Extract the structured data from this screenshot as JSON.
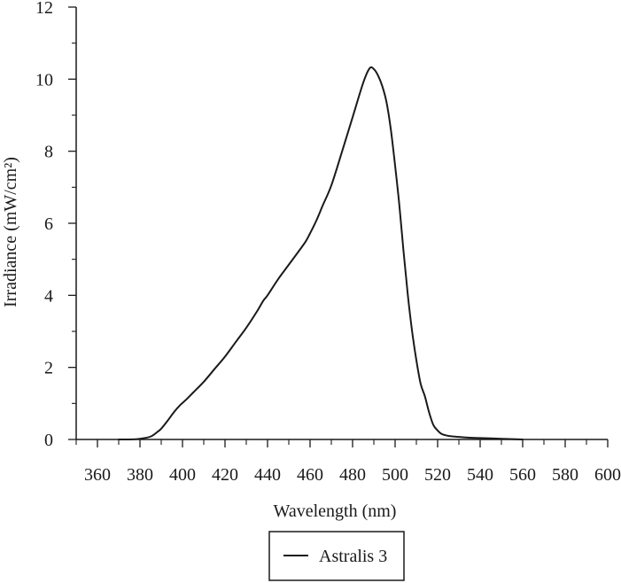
{
  "chart_data": {
    "type": "line",
    "xlabel": "Wavelength (nm)",
    "ylabel": "Irradiance (mW/cm²)",
    "xlim": [
      350,
      600
    ],
    "ylim": [
      0,
      12
    ],
    "xticks": [
      360,
      380,
      400,
      420,
      440,
      460,
      480,
      500,
      520,
      540,
      560,
      580,
      600
    ],
    "yticks": [
      0,
      2,
      4,
      6,
      8,
      10,
      12
    ],
    "grid": false,
    "legend_position": "bottom-center",
    "series": [
      {
        "name": "Astralis 3",
        "color": "#1a1a1a",
        "x": [
          370,
          375,
          380,
          385,
          388,
          390,
          393,
          396,
          399,
          402,
          405,
          410,
          415,
          420,
          425,
          430,
          435,
          438,
          440,
          445,
          450,
          455,
          458,
          460,
          463,
          466,
          470,
          475,
          480,
          485,
          488,
          490,
          492,
          494,
          496,
          498,
          500,
          502,
          504,
          506,
          508,
          510,
          512,
          514,
          516,
          518,
          520,
          522,
          525,
          530,
          535,
          540,
          550,
          560
        ],
        "y": [
          0,
          0,
          0.02,
          0.08,
          0.2,
          0.3,
          0.52,
          0.76,
          0.96,
          1.12,
          1.3,
          1.6,
          1.95,
          2.3,
          2.7,
          3.1,
          3.55,
          3.85,
          4.0,
          4.45,
          4.85,
          5.25,
          5.5,
          5.72,
          6.08,
          6.5,
          7.05,
          7.98,
          8.94,
          9.9,
          10.3,
          10.28,
          10.1,
          9.8,
          9.35,
          8.6,
          7.6,
          6.5,
          5.2,
          4.0,
          3.0,
          2.2,
          1.55,
          1.2,
          0.75,
          0.4,
          0.25,
          0.15,
          0.1,
          0.07,
          0.05,
          0.04,
          0.02,
          0.0
        ]
      }
    ]
  }
}
